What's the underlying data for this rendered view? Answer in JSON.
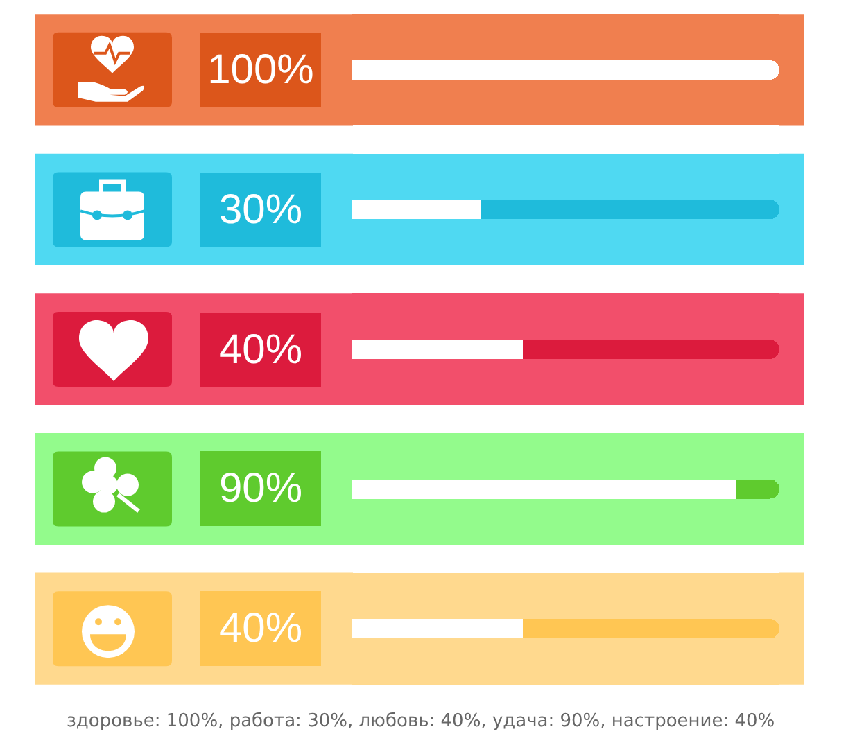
{
  "chart_data": {
    "type": "bar",
    "orientation": "horizontal",
    "stacked": true,
    "categories": [
      null,
      null,
      null,
      null,
      null
    ],
    "series": [
      {
        "colors": [
          "#ffffff",
          "#ffffff",
          "#ffffff",
          "#ffffff",
          "#ffffff"
        ],
        "values": [
          100,
          30,
          40,
          90,
          40
        ],
        "value_labels": [
          "100%",
          "30%",
          "40%",
          "90%",
          "40%"
        ]
      },
      {
        "colors": [
          "#dc561b",
          "#1fbbdb",
          "#dc1b3d",
          "#5fcb2e",
          "#ffc653"
        ],
        "values": [
          null,
          70,
          60,
          10,
          60
        ]
      }
    ],
    "xlim": [
      0,
      100
    ],
    "annotations": [
      "здоровье: 100%, работа: 30%, любовь: 40%, удача: 90%, настроение: 40%"
    ]
  }
}
